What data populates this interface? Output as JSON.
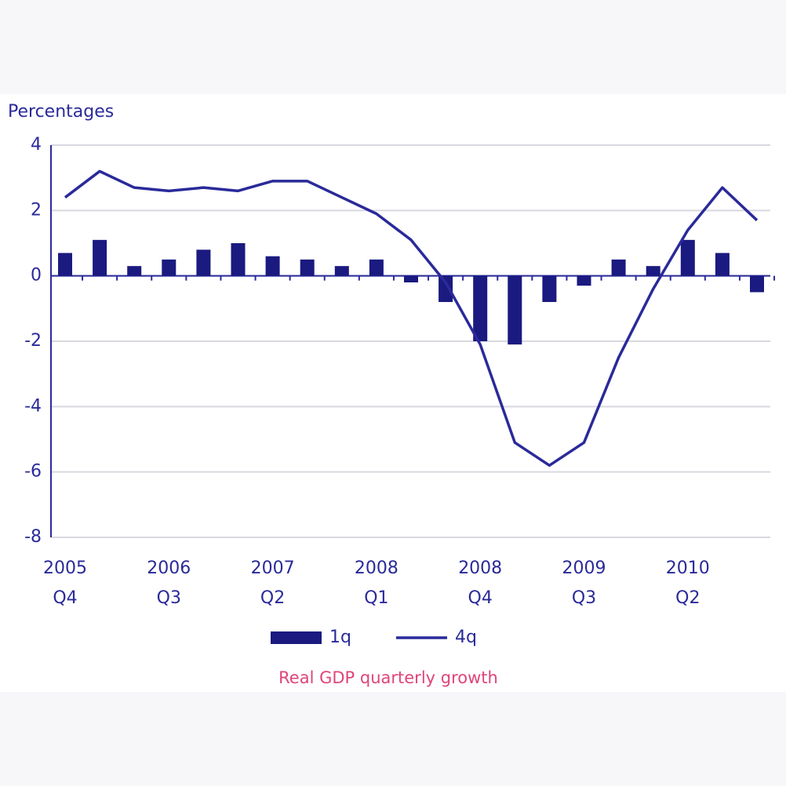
{
  "chart_data": {
    "type": "bar-line",
    "y_label": "Percentages",
    "title": "Real GDP quarterly growth",
    "categories": [
      "2005 Q4",
      null,
      null,
      "2006 Q3",
      null,
      null,
      "2007 Q2",
      null,
      null,
      "2008 Q1",
      null,
      null,
      "2008 Q4",
      null,
      null,
      "2009 Q3",
      null,
      null,
      "2010 Q2",
      null,
      null
    ],
    "series": [
      {
        "name": "1q",
        "type": "bar",
        "color": "#1a1a80",
        "values": [
          0.7,
          1.1,
          0.3,
          0.5,
          0.8,
          1.0,
          0.6,
          0.5,
          0.3,
          0.5,
          -0.2,
          -0.8,
          -2.0,
          -2.1,
          -0.8,
          -0.3,
          0.5,
          0.3,
          1.1,
          0.7,
          -0.5
        ]
      },
      {
        "name": "4q",
        "type": "line",
        "color": "#2a2a9a",
        "values": [
          2.4,
          3.2,
          2.7,
          2.6,
          2.7,
          2.6,
          2.9,
          2.9,
          2.4,
          1.9,
          1.1,
          -0.2,
          -2.1,
          -5.1,
          -5.8,
          -5.1,
          -2.5,
          -0.4,
          1.4,
          2.7,
          1.7
        ]
      }
    ],
    "ylim": [
      -8,
      4
    ],
    "yticks": [
      -8,
      -6,
      -4,
      -2,
      0,
      2,
      4
    ],
    "grid": true
  }
}
